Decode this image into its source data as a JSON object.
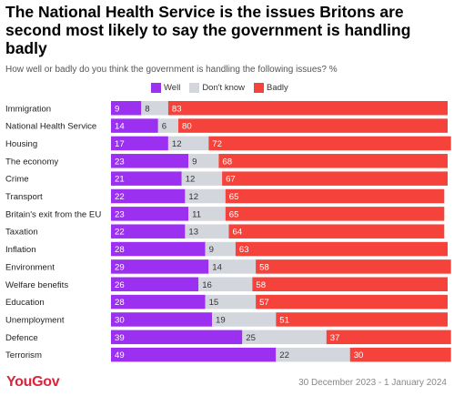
{
  "title": "The National Health Service is the issues Britons are second most likely to say the government is handling badly",
  "subtitle": "How well or badly do you think the government is handling the following issues? %",
  "footer": {
    "logo": "YouGov",
    "date": "30 December 2023 - 1 January 2024"
  },
  "colors": {
    "well": "#9b30f0",
    "dont_know": "#d4d6dd",
    "badly": "#f5433b"
  },
  "chart_data": {
    "type": "bar",
    "orientation": "horizontal",
    "stacked": true,
    "legend_position": "top",
    "categories": [
      "Immigration",
      "National Health Service",
      "Housing",
      "The economy",
      "Crime",
      "Transport",
      "Britain's exit from the EU",
      "Taxation",
      "Inflation",
      "Environment",
      "Welfare benefits",
      "Education",
      "Unemployment",
      "Defence",
      "Terrorism"
    ],
    "series": [
      {
        "name": "Well",
        "color": "#9b30f0",
        "values": [
          9,
          14,
          17,
          23,
          21,
          22,
          23,
          22,
          28,
          29,
          26,
          28,
          30,
          39,
          49
        ]
      },
      {
        "name": "Don't know",
        "color": "#d4d6dd",
        "values": [
          8,
          6,
          12,
          9,
          12,
          12,
          11,
          13,
          9,
          14,
          16,
          15,
          19,
          25,
          22
        ]
      },
      {
        "name": "Badly",
        "color": "#f5433b",
        "values": [
          83,
          80,
          72,
          68,
          67,
          65,
          65,
          64,
          63,
          58,
          58,
          57,
          51,
          37,
          30
        ]
      }
    ]
  }
}
